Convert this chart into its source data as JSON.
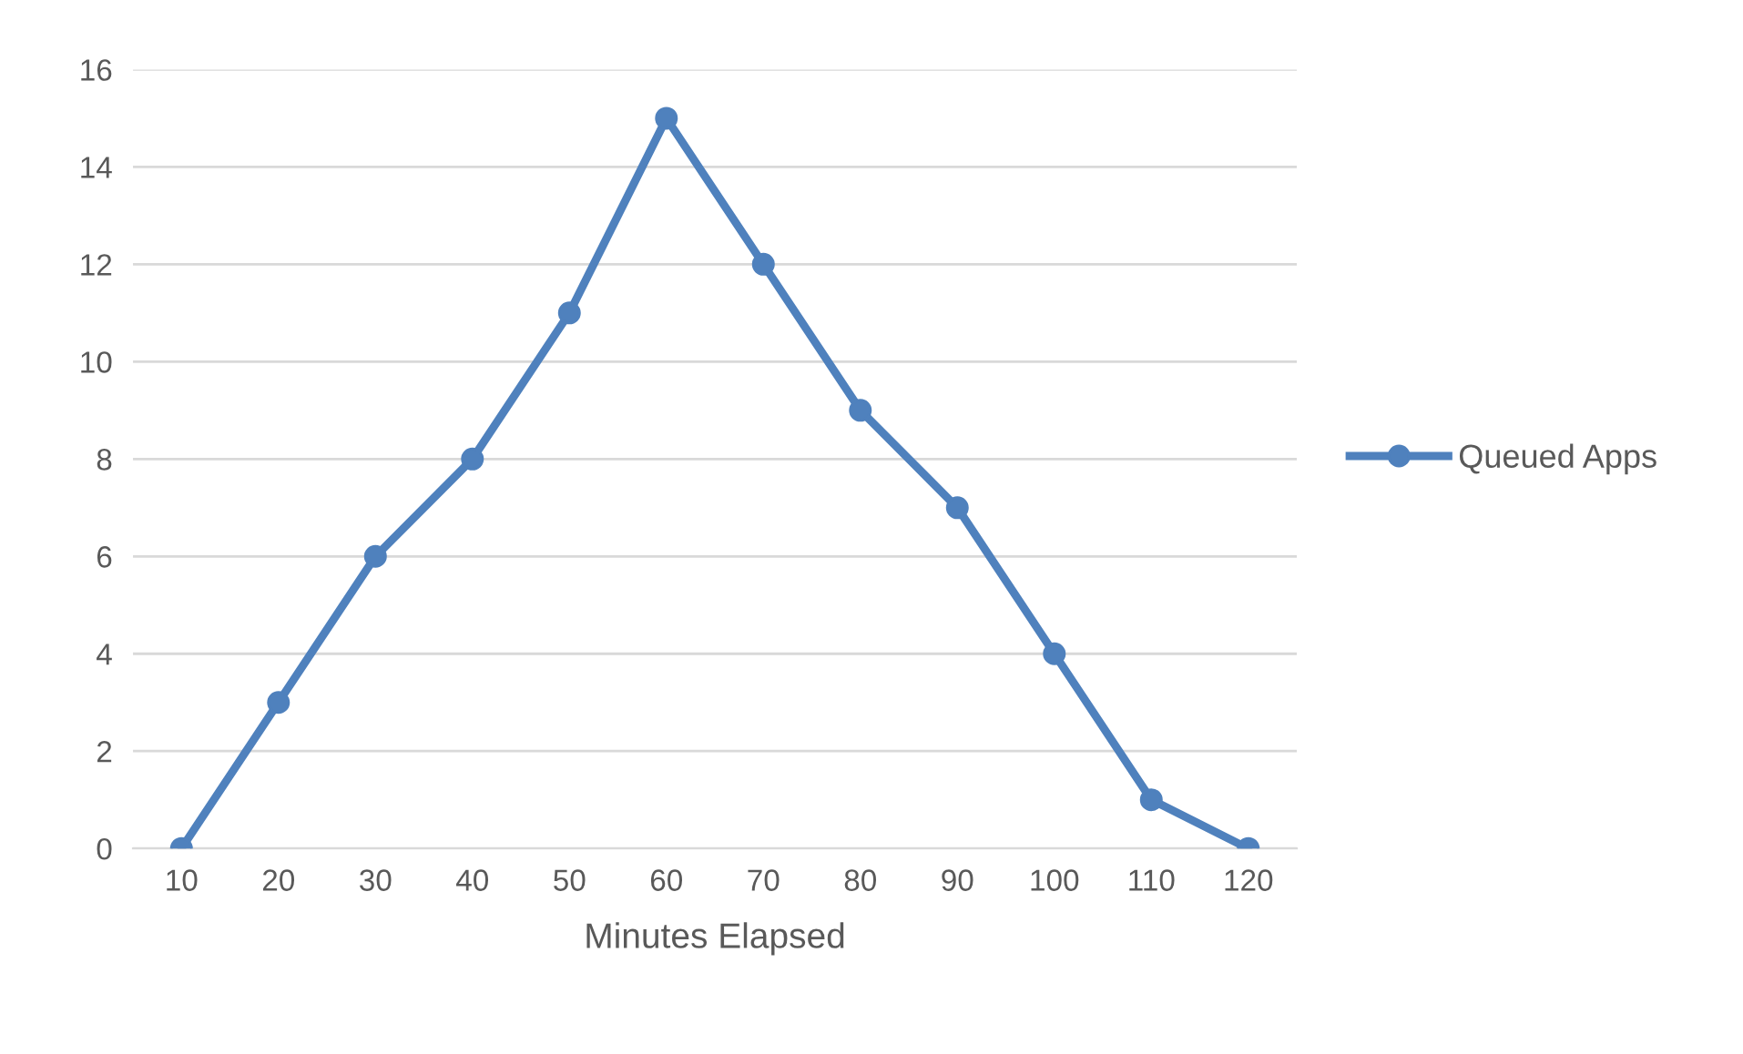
{
  "chart_data": {
    "type": "line",
    "xlabel": "Minutes Elapsed",
    "categories": [
      "10",
      "20",
      "30",
      "40",
      "50",
      "60",
      "70",
      "80",
      "90",
      "100",
      "110",
      "120"
    ],
    "series": [
      {
        "name": "Queued Apps",
        "color": "#4f81bd",
        "values": [
          0,
          3,
          6,
          8,
          11,
          15,
          12,
          9,
          7,
          4,
          1,
          0
        ]
      }
    ],
    "ylim": [
      0,
      16
    ],
    "yticks": [
      0,
      2,
      4,
      6,
      8,
      10,
      12,
      14,
      16
    ],
    "grid": "y",
    "legend": "right",
    "marker": "circle",
    "line_style": "solid"
  }
}
